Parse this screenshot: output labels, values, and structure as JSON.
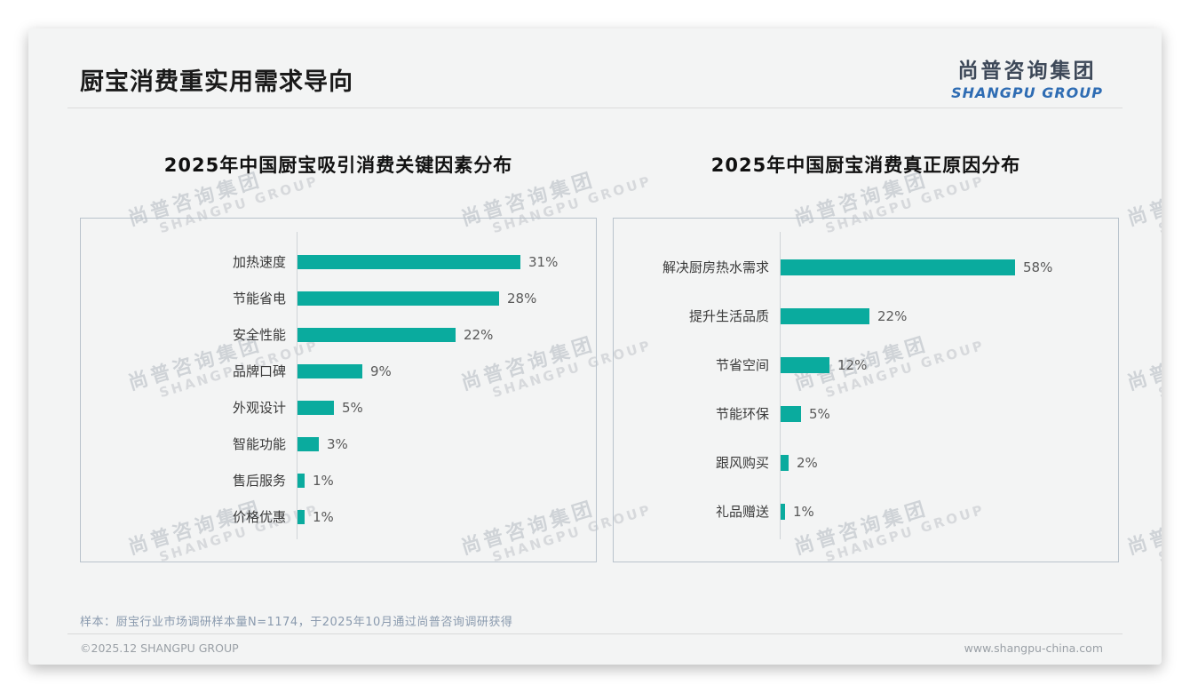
{
  "page": {
    "title": "厨宝消费重实用需求导向",
    "logo": {
      "cn": "尚普咨询集团",
      "en": "SHANGPU GROUP"
    },
    "watermark": {
      "cn": "尚普咨询集团",
      "en": "SHANGPU GROUP"
    },
    "note": "样本：厨宝行业市场调研样本量N=1174，于2025年10月通过尚普咨询调研获得",
    "footer_left": "©2025.12 SHANGPU GROUP",
    "footer_right": "www.shangpu-china.com"
  },
  "colors": {
    "bar_teal": "#0aab9e",
    "logo_blue": "#2e6cb3",
    "logo_dark": "#3d4858"
  },
  "chart_data": [
    {
      "type": "bar",
      "orientation": "horizontal",
      "title": "2025年中国厨宝吸引消费关键因素分布",
      "categories": [
        "加热速度",
        "节能省电",
        "安全性能",
        "品牌口碑",
        "外观设计",
        "智能功能",
        "售后服务",
        "价格优惠"
      ],
      "values": [
        31,
        28,
        22,
        9,
        5,
        3,
        1,
        1
      ],
      "unit": "%",
      "value_labels": [
        "31%",
        "28%",
        "22%",
        "9%",
        "5%",
        "3%",
        "1%",
        "1%"
      ],
      "xlim": [
        0,
        35
      ],
      "grid": false,
      "legend": false
    },
    {
      "type": "bar",
      "orientation": "horizontal",
      "title": "2025年中国厨宝消费真正原因分布",
      "categories": [
        "解决厨房热水需求",
        "提升生活品质",
        "节省空间",
        "节能环保",
        "跟风购买",
        "礼品赠送"
      ],
      "values": [
        58,
        22,
        12,
        5,
        2,
        1
      ],
      "unit": "%",
      "value_labels": [
        "58%",
        "22%",
        "12%",
        "5%",
        "2%",
        "1%"
      ],
      "xlim": [
        0,
        65
      ],
      "grid": false,
      "legend": false
    }
  ]
}
